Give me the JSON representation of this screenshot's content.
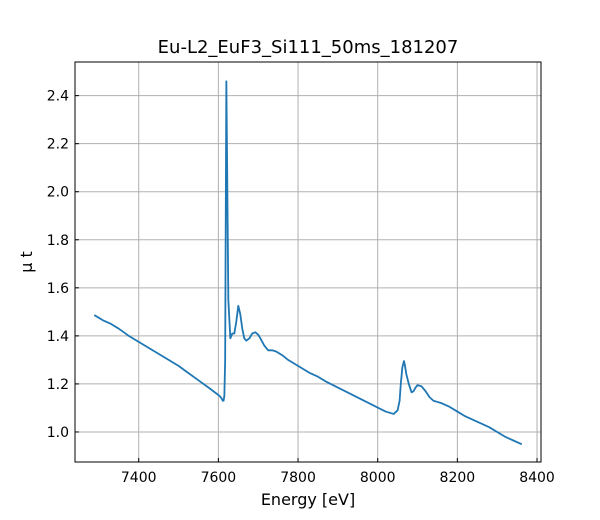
{
  "chart_data": {
    "type": "line",
    "title": "Eu-L2_EuF3_Si111_50ms_181207",
    "xlabel": "Energy [eV]",
    "ylabel": "μ t",
    "xlim": [
      7240,
      8410
    ],
    "ylim": [
      0.875,
      2.54
    ],
    "x_ticks": [
      7400,
      7600,
      7800,
      8000,
      8200,
      8400
    ],
    "x_tick_labels": [
      "7400",
      "7600",
      "7800",
      "8000",
      "8200",
      "8400"
    ],
    "y_ticks": [
      1.0,
      1.2,
      1.4,
      1.6,
      1.8,
      2.0,
      2.2,
      2.4
    ],
    "y_tick_labels": [
      "1.0",
      "1.2",
      "1.4",
      "1.6",
      "1.8",
      "2.0",
      "2.2",
      "2.4"
    ],
    "grid": true,
    "tick_direction": "in",
    "series": [
      {
        "color": "#1f77b4",
        "x": [
          7290,
          7310,
          7330,
          7350,
          7375,
          7400,
          7425,
          7450,
          7475,
          7500,
          7525,
          7550,
          7575,
          7595,
          7603,
          7608,
          7611,
          7613,
          7615,
          7617,
          7618,
          7620,
          7622,
          7625,
          7630,
          7635,
          7640,
          7645,
          7650,
          7655,
          7660,
          7665,
          7670,
          7678,
          7685,
          7693,
          7700,
          7707,
          7715,
          7725,
          7735,
          7745,
          7760,
          7775,
          7790,
          7800,
          7815,
          7830,
          7850,
          7870,
          7900,
          7930,
          7960,
          7990,
          8020,
          8040,
          8050,
          8055,
          8058,
          8062,
          8066,
          8068,
          8072,
          8078,
          8085,
          8090,
          8095,
          8100,
          8110,
          8120,
          8130,
          8140,
          8150,
          8160,
          8180,
          8200,
          8220,
          8240,
          8260,
          8280,
          8300,
          8320,
          8340,
          8360
        ],
        "y": [
          1.485,
          1.465,
          1.45,
          1.43,
          1.4,
          1.375,
          1.35,
          1.325,
          1.3,
          1.275,
          1.245,
          1.215,
          1.185,
          1.16,
          1.15,
          1.14,
          1.13,
          1.13,
          1.15,
          1.3,
          1.7,
          2.46,
          2.1,
          1.55,
          1.39,
          1.41,
          1.41,
          1.46,
          1.525,
          1.49,
          1.43,
          1.39,
          1.38,
          1.39,
          1.41,
          1.415,
          1.405,
          1.385,
          1.36,
          1.34,
          1.34,
          1.335,
          1.32,
          1.3,
          1.285,
          1.275,
          1.26,
          1.245,
          1.23,
          1.21,
          1.185,
          1.16,
          1.135,
          1.11,
          1.085,
          1.075,
          1.09,
          1.13,
          1.2,
          1.27,
          1.295,
          1.28,
          1.24,
          1.2,
          1.165,
          1.17,
          1.185,
          1.195,
          1.19,
          1.17,
          1.145,
          1.13,
          1.125,
          1.12,
          1.105,
          1.085,
          1.065,
          1.05,
          1.035,
          1.02,
          1.0,
          0.98,
          0.965,
          0.95
        ]
      }
    ]
  }
}
